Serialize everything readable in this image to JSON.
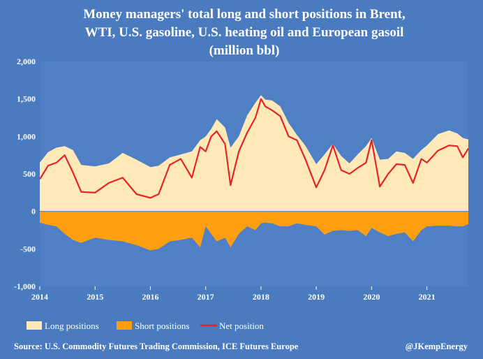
{
  "chart_data": {
    "type": "area",
    "title_lines": [
      "Money managers' total long and short positions in Brent,",
      "WTI, U.S. gasoline, U.S. heating oil and European gasoil",
      "(million bbl)"
    ],
    "xlabel": "",
    "ylabel": "",
    "x_range": [
      2014.0,
      2021.75
    ],
    "ylim": [
      -1000,
      2000
    ],
    "y_ticks": [
      -1000,
      -500,
      0,
      500,
      1000,
      1500,
      2000
    ],
    "y_tick_labels": [
      "-1,000",
      "-500",
      "0",
      "500",
      "1,000",
      "1,500",
      "2,000"
    ],
    "x_ticks": [
      2014,
      2015,
      2016,
      2017,
      2018,
      2019,
      2020,
      2021
    ],
    "x_tick_labels": [
      "2014",
      "2015",
      "2016",
      "2017",
      "2018",
      "2019",
      "2020",
      "2021"
    ],
    "grid": false,
    "legend_position": "bottom-left",
    "colors": {
      "background": "#4A7BBF",
      "plot_background": "#4F7FC4",
      "long": "#FFE9B8",
      "short": "#FF9F0F",
      "net": "#E8222A",
      "text": "#FFFFFF"
    },
    "x": [
      2014.0,
      2014.15,
      2014.3,
      2014.45,
      2014.6,
      2014.75,
      2015.0,
      2015.25,
      2015.5,
      2015.75,
      2016.0,
      2016.15,
      2016.35,
      2016.55,
      2016.75,
      2016.9,
      2017.0,
      2017.1,
      2017.2,
      2017.35,
      2017.45,
      2017.6,
      2017.75,
      2017.9,
      2018.0,
      2018.08,
      2018.2,
      2018.35,
      2018.5,
      2018.65,
      2018.8,
      2019.0,
      2019.15,
      2019.3,
      2019.45,
      2019.6,
      2019.75,
      2019.9,
      2020.0,
      2020.15,
      2020.3,
      2020.45,
      2020.6,
      2020.75,
      2020.9,
      2021.0,
      2021.2,
      2021.4,
      2021.55,
      2021.65,
      2021.75
    ],
    "series": [
      {
        "name": "Long positions",
        "style": "area",
        "values": [
          650,
          790,
          850,
          870,
          820,
          620,
          600,
          640,
          780,
          690,
          590,
          610,
          720,
          760,
          800,
          950,
          1000,
          1100,
          1230,
          1120,
          850,
          1000,
          1280,
          1450,
          1550,
          1490,
          1480,
          1400,
          1180,
          1020,
          880,
          630,
          760,
          900,
          740,
          640,
          760,
          870,
          980,
          690,
          700,
          800,
          780,
          700,
          820,
          880,
          1030,
          1080,
          1040,
          980,
          960
        ]
      },
      {
        "name": "Short positions",
        "style": "area",
        "values": [
          -150,
          -180,
          -200,
          -300,
          -380,
          -420,
          -350,
          -380,
          -400,
          -450,
          -520,
          -500,
          -400,
          -380,
          -350,
          -480,
          -200,
          -300,
          -400,
          -350,
          -480,
          -300,
          -200,
          -250,
          -160,
          -150,
          -160,
          -200,
          -200,
          -160,
          -180,
          -200,
          -310,
          -260,
          -250,
          -260,
          -250,
          -330,
          -220,
          -280,
          -330,
          -300,
          -280,
          -400,
          -250,
          -200,
          -190,
          -190,
          -200,
          -200,
          -170
        ]
      },
      {
        "name": "Net position",
        "style": "line",
        "values": [
          430,
          610,
          650,
          750,
          520,
          260,
          250,
          380,
          450,
          230,
          180,
          230,
          620,
          700,
          450,
          860,
          800,
          1000,
          1070,
          900,
          350,
          800,
          1050,
          1250,
          1500,
          1400,
          1350,
          1270,
          1000,
          950,
          700,
          320,
          550,
          880,
          550,
          500,
          580,
          650,
          950,
          330,
          500,
          630,
          620,
          380,
          700,
          650,
          810,
          880,
          870,
          720,
          840
        ]
      }
    ]
  },
  "legend": {
    "items": [
      {
        "label": "Long positions",
        "color": "#FFE9B8",
        "swatch": "box"
      },
      {
        "label": "Short positions",
        "color": "#FF9F0F",
        "swatch": "box"
      },
      {
        "label": "Net position",
        "color": "#E8222A",
        "swatch": "line"
      }
    ]
  },
  "footer": {
    "source": "Source: U.S. Commodity Futures Trading Commission, ICE Futures Europe",
    "credit": "@JKempEnergy"
  }
}
